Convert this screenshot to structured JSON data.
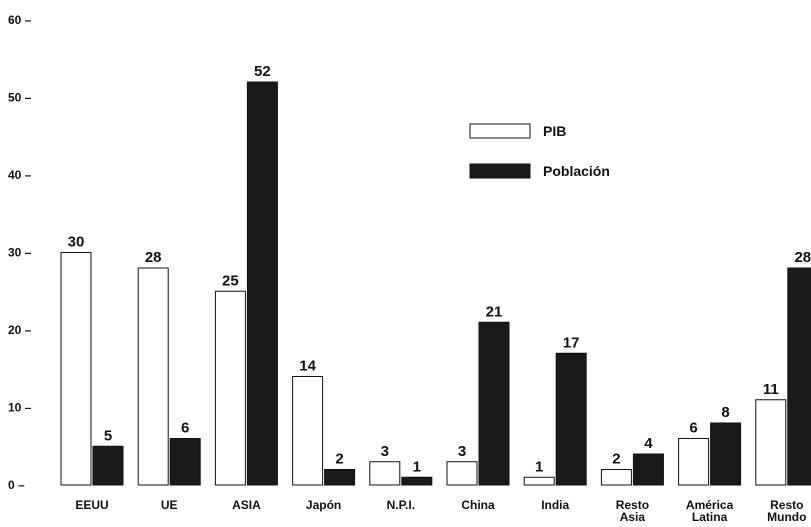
{
  "chart_data": {
    "type": "bar",
    "categories": [
      [
        "EEUU"
      ],
      [
        "UE"
      ],
      [
        "ASIA"
      ],
      [
        "Japón"
      ],
      [
        "N.P.I."
      ],
      [
        "China"
      ],
      [
        "India"
      ],
      [
        "Resto",
        "Asia"
      ],
      [
        "América",
        "Latina"
      ],
      [
        "Resto",
        "Mundo"
      ]
    ],
    "series": [
      {
        "name": "PIB",
        "values": [
          30,
          28,
          25,
          14,
          3,
          3,
          1,
          2,
          6,
          11
        ],
        "color": "#ffffff"
      },
      {
        "name": "Población",
        "values": [
          5,
          6,
          52,
          2,
          1,
          21,
          17,
          4,
          8,
          28
        ],
        "color": "#1a1a1a"
      }
    ],
    "y_ticks": [
      "0 –",
      "10 –",
      "20 –",
      "30 –",
      "40 –",
      "50 –",
      "60 –"
    ],
    "ylim": [
      0,
      60
    ],
    "grid": false,
    "legend_position": "right",
    "title": "",
    "xlabel": "",
    "ylabel": ""
  }
}
